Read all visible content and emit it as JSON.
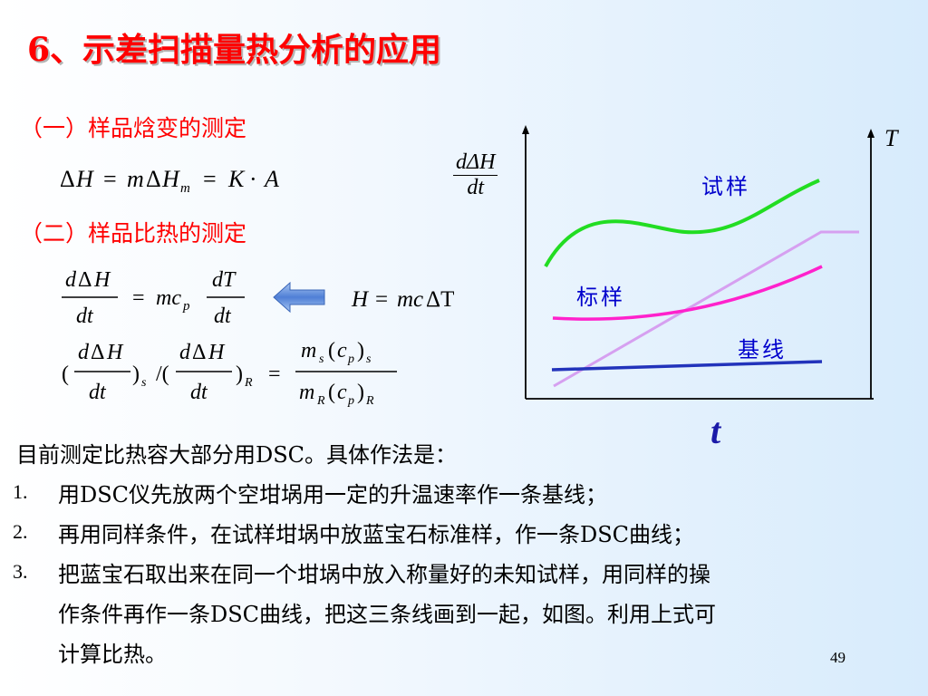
{
  "title": "6、示差扫描量热分析的应用",
  "section1": "（一）样品焓变的测定",
  "section2": "（二）样品比热的测定",
  "eq1": "ΔH = mΔHm = K · A",
  "eq2": "dΔH/dt = mcp dT/dt",
  "eq3": "(dΔH/dt)s /(dΔH/dt)R = ms(cp)s / mR(cp)R",
  "eq_side": "H = mcΔT",
  "arrow_icon": "left-arrow-icon",
  "chart": {
    "y_left_num": "dΔH",
    "y_left_den": "dt",
    "y_right_label": "T",
    "x_label": "t",
    "curve_sample_label": "试样",
    "curve_standard_label": "标样",
    "curve_baseline_label": "基线",
    "colors": {
      "sample": "#22dd22",
      "standard": "#ff22cc",
      "baseline": "#2233bb",
      "temperature": "#d6a0f0"
    }
  },
  "intro": "目前测定比热容大部分用DSC。具体作法是：",
  "steps": [
    {
      "num": "1.",
      "text": "用DSC仪先放两个空坩埚用一定的升温速率作一条基线；"
    },
    {
      "num": "2.",
      "text": "再用同样条件，在试样坩埚中放蓝宝石标准样，作一条DSC曲线；"
    },
    {
      "num": "3.",
      "text": "把蓝宝石取出来在同一个坩埚中放入称量好的未知试样，用同样的操"
    }
  ],
  "step3_cont1": "作条件再作一条DSC曲线，把这三条线画到一起，如图。利用上式可",
  "step3_cont2": "计算比热。",
  "page_number": "49"
}
